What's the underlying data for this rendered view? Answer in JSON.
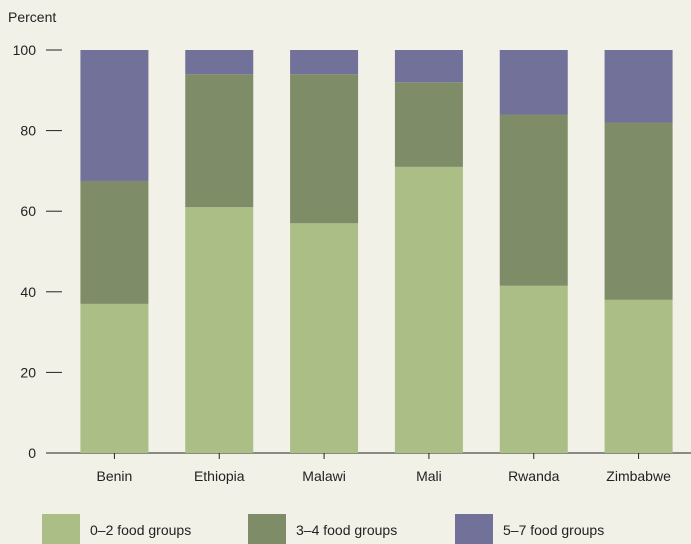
{
  "chart_data": {
    "type": "bar",
    "stacked": true,
    "ylabel": "Percent",
    "xlabel": "",
    "title": "",
    "ylim": [
      0,
      100
    ],
    "yticks": [
      0,
      20,
      40,
      60,
      80,
      100
    ],
    "categories": [
      "Benin",
      "Ethiopia",
      "Malawi",
      "Mali",
      "Rwanda",
      "Zimbabwe"
    ],
    "series": [
      {
        "name": "0–2 food groups",
        "color": "#aabe86",
        "values": [
          37,
          61,
          57,
          71,
          41.5,
          38
        ]
      },
      {
        "name": "3–4 food groups",
        "color": "#7e8c68",
        "values": [
          30.5,
          33,
          37,
          21,
          42.5,
          44
        ]
      },
      {
        "name": "5–7 food groups",
        "color": "#72719a",
        "values": [
          32.5,
          6,
          6,
          8,
          16,
          18
        ]
      }
    ],
    "grid": false,
    "legend": "bottom"
  }
}
